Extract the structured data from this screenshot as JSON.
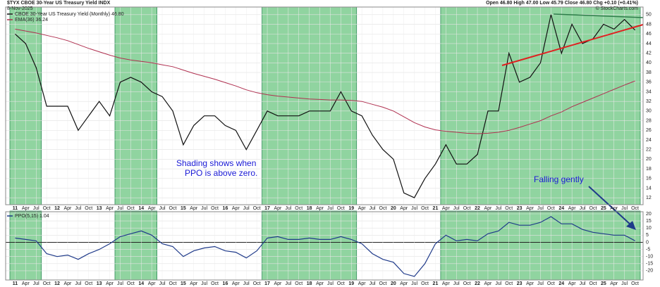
{
  "chart_data": [
    {
      "type": "line",
      "title": "$TYX CBOE 30-Year US Treasury Yield INDX",
      "subtitle": "8-Nov-2025",
      "quote": "Open 46.80 High 47.00 Low 45.79 Close 46.80 Chg +0.10 (+0.41%)",
      "source": "© StockCharts.com",
      "annotations": [
        "Shading shows when",
        "PPO is above zero.",
        "Falling gently"
      ],
      "categories": [
        "11",
        "Apr",
        "Jul",
        "Oct",
        "12",
        "Apr",
        "Jul",
        "Oct",
        "13",
        "Apr",
        "Jul",
        "Oct",
        "14",
        "Apr",
        "Jul",
        "Oct",
        "15",
        "Apr",
        "Jul",
        "Oct",
        "16",
        "Apr",
        "Jul",
        "Oct",
        "17",
        "Apr",
        "Jul",
        "Oct",
        "18",
        "Apr",
        "Jul",
        "Oct",
        "19",
        "Apr",
        "Jul",
        "Oct",
        "20",
        "Apr",
        "Jul",
        "Oct",
        "21",
        "Apr",
        "Jul",
        "Oct",
        "22",
        "Apr",
        "Jul",
        "Oct",
        "23",
        "Apr",
        "Jul",
        "Oct",
        "24",
        "Apr",
        "Jul",
        "Oct",
        "25",
        "Apr",
        "Jul",
        "Oct"
      ],
      "series": [
        {
          "name": "CBOE 30-Year US Treasury Yield (Monthly) 46.80",
          "color": "#111111",
          "values": [
            46,
            44,
            39,
            31,
            31,
            31,
            26,
            29,
            32,
            29,
            36,
            37,
            36,
            34,
            33,
            30,
            23,
            27,
            29,
            29,
            27,
            26,
            22,
            26,
            30,
            29,
            29,
            29,
            30,
            30,
            30,
            34,
            30,
            29,
            25,
            22,
            20,
            13,
            12,
            16,
            19,
            23,
            19,
            19,
            21,
            30,
            30,
            42,
            36,
            37,
            40,
            50,
            42,
            48,
            44,
            45,
            48,
            47,
            49,
            46.8
          ]
        },
        {
          "name": "EMA(36) 36.24",
          "color": "#b03050",
          "values": [
            47,
            46.6,
            46.2,
            45.7,
            45.2,
            44.6,
            43.8,
            43,
            42.3,
            41.6,
            41,
            40.6,
            40.3,
            40,
            39.6,
            39.2,
            38.5,
            37.8,
            37.2,
            36.6,
            35.9,
            35.2,
            34.4,
            33.8,
            33.4,
            33.1,
            32.9,
            32.7,
            32.5,
            32.4,
            32.3,
            32.3,
            32.2,
            32,
            31.4,
            30.8,
            30,
            28.8,
            27.6,
            26.7,
            26.1,
            25.8,
            25.6,
            25.4,
            25.3,
            25.4,
            25.6,
            26,
            26.6,
            27.3,
            28,
            29,
            29.8,
            30.9,
            31.8,
            32.7,
            33.6,
            34.5,
            35.4,
            36.24
          ]
        }
      ],
      "ylim": [
        11,
        51
      ],
      "yticks": [
        12,
        14,
        16,
        18,
        20,
        22,
        24,
        26,
        28,
        30,
        32,
        34,
        36,
        38,
        40,
        42,
        44,
        46,
        48,
        50
      ],
      "grid": true,
      "shading_color": "#90d4a0"
    },
    {
      "type": "line",
      "categories": [
        "11",
        "Apr",
        "Jul",
        "Oct",
        "12",
        "Apr",
        "Jul",
        "Oct",
        "13",
        "Apr",
        "Jul",
        "Oct",
        "14",
        "Apr",
        "Jul",
        "Oct",
        "15",
        "Apr",
        "Jul",
        "Oct",
        "16",
        "Apr",
        "Jul",
        "Oct",
        "17",
        "Apr",
        "Jul",
        "Oct",
        "18",
        "Apr",
        "Jul",
        "Oct",
        "19",
        "Apr",
        "Jul",
        "Oct",
        "20",
        "Apr",
        "Jul",
        "Oct",
        "21",
        "Apr",
        "Jul",
        "Oct",
        "22",
        "Apr",
        "Jul",
        "Oct",
        "23",
        "Apr",
        "Jul",
        "Oct",
        "24",
        "Apr",
        "Jul",
        "Oct",
        "25",
        "Apr",
        "Jul",
        "Oct"
      ],
      "series": [
        {
          "name": "PPO(5,15) 1.04",
          "color": "#1f3a8a",
          "values": [
            3,
            2,
            1,
            -8,
            -10,
            -9,
            -12,
            -8,
            -5,
            -1,
            4,
            6,
            8,
            5,
            -1,
            -3,
            -10,
            -6,
            -4,
            -3,
            -6,
            -7,
            -11,
            -6,
            3,
            4,
            2,
            2,
            3,
            2,
            2,
            4,
            2,
            -1,
            -8,
            -12,
            -14,
            -22,
            -24,
            -15,
            -1,
            5,
            1,
            2,
            1,
            6,
            8,
            14,
            12,
            12,
            14,
            18,
            13,
            13,
            9,
            7,
            6,
            5,
            5,
            1.04
          ]
        }
      ],
      "ylim": [
        -25,
        20
      ],
      "yticks": [
        -20,
        -15,
        -10,
        -5,
        0,
        5,
        10,
        15,
        20
      ],
      "grid": true
    }
  ]
}
